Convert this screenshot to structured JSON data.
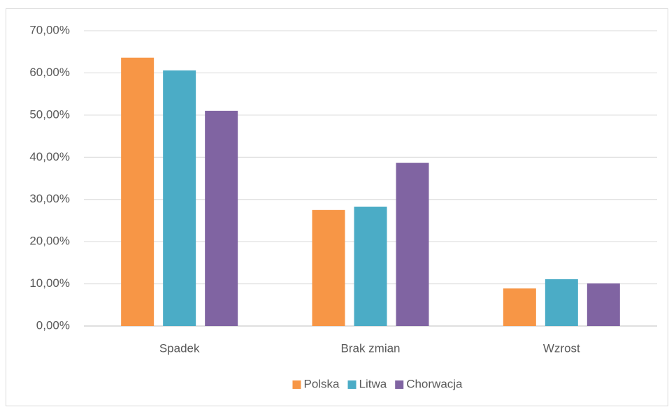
{
  "chart_data": {
    "type": "bar",
    "categories": [
      "Spadek",
      "Brak zmian",
      "Wzrost"
    ],
    "series": [
      {
        "name": "Polska",
        "color": "#f79646",
        "values": [
          63.6,
          27.5,
          8.9
        ]
      },
      {
        "name": "Litwa",
        "color": "#4bacc6",
        "values": [
          60.6,
          28.3,
          11.1
        ]
      },
      {
        "name": "Chorwacja",
        "color": "#8064a2",
        "values": [
          51.0,
          38.7,
          10.1
        ]
      }
    ],
    "ylim": [
      0,
      70
    ],
    "yticks": [
      {
        "value": 0,
        "label": "0,00%"
      },
      {
        "value": 10,
        "label": "10,00%"
      },
      {
        "value": 20,
        "label": "20,00%"
      },
      {
        "value": 30,
        "label": "30,00%"
      },
      {
        "value": 40,
        "label": "40,00%"
      },
      {
        "value": 50,
        "label": "50,00%"
      },
      {
        "value": 60,
        "label": "60,00%"
      },
      {
        "value": 70,
        "label": "70,00%"
      }
    ],
    "grid": true,
    "legend": "bottom"
  }
}
